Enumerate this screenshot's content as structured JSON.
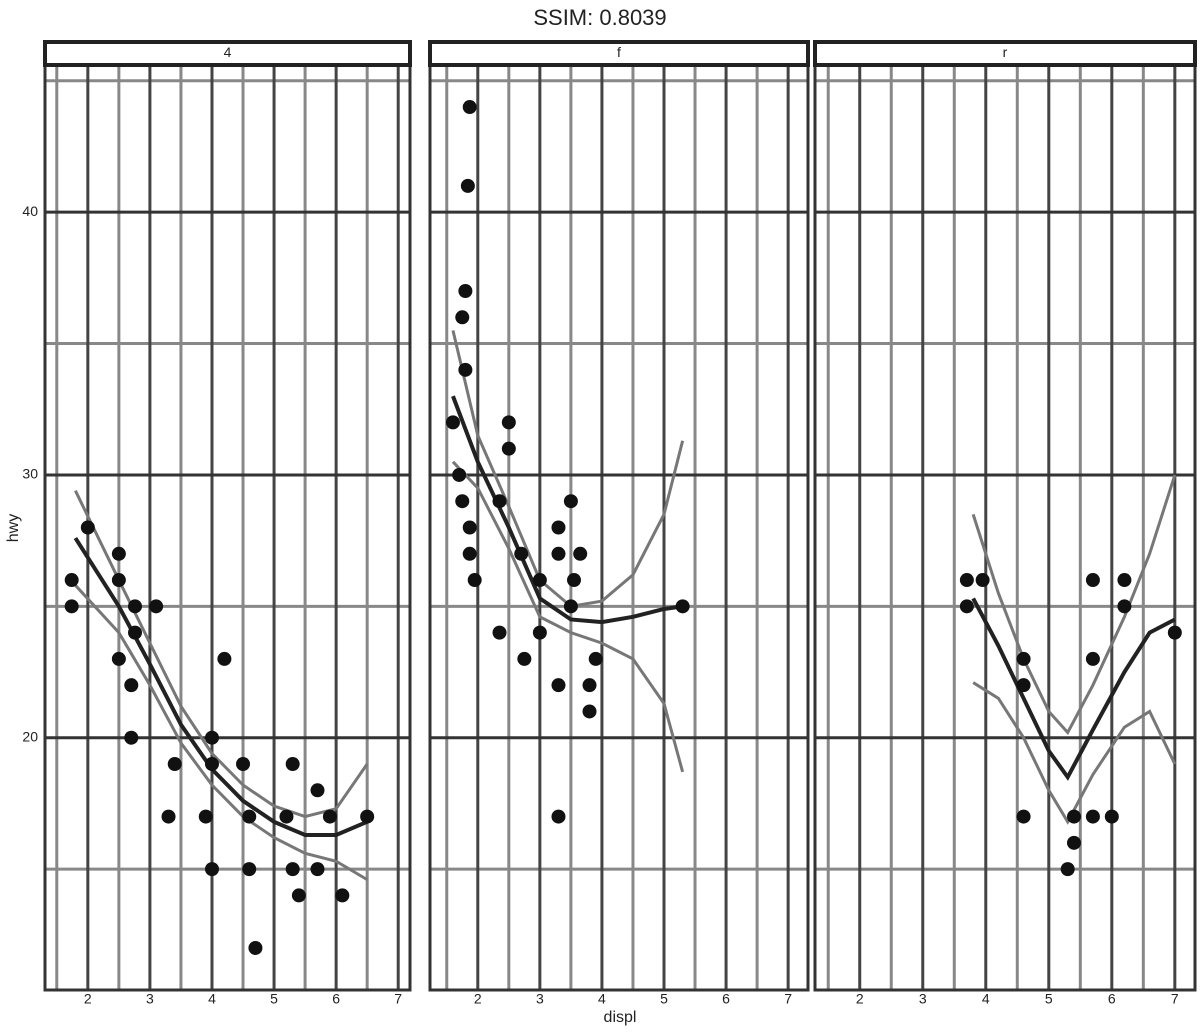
{
  "chart_data": {
    "type": "scatter",
    "title": "SSIM: 0.8039",
    "x_label": "displ",
    "y_label": "hwy",
    "ylim": [
      10.4,
      45.6
    ],
    "yticks": [
      20,
      30,
      40
    ],
    "yticks_minor": [
      15,
      25,
      35,
      45
    ],
    "point_color": "#111111",
    "smooth_color": "#222222",
    "band_color": "#777777",
    "grid": true,
    "panels": [
      {
        "label": "4",
        "xlim": [
          1.31,
          7.19
        ],
        "xticks": [
          2,
          3,
          4,
          5,
          6,
          7
        ],
        "xticks_minor": [
          1.5,
          2.5,
          3.5,
          4.5,
          5.5,
          6.5
        ],
        "x": [
          1.74,
          1.74,
          2.0,
          2.5,
          2.5,
          2.76,
          3.1,
          2.76,
          2.5,
          4.2,
          2.7,
          2.7,
          4.0,
          3.4,
          4.0,
          4.5,
          5.3,
          3.3,
          3.9,
          4.6,
          5.2,
          5.9,
          6.5,
          5.7,
          4.0,
          4.6,
          5.3,
          5.7,
          5.4,
          6.1,
          4.7
        ],
        "y": [
          26,
          25,
          28,
          27,
          26,
          25,
          25,
          24,
          23,
          23,
          22,
          20,
          20,
          19,
          19,
          19,
          19,
          17,
          17,
          17,
          17,
          17,
          17,
          18,
          15,
          15,
          15,
          15,
          14,
          14,
          12
        ],
        "smooth": {
          "x": [
            1.8,
            2.5,
            3,
            3.5,
            4,
            4.5,
            5,
            5.5,
            6,
            6.5
          ],
          "y": [
            27.6,
            25,
            22.8,
            20.5,
            18.8,
            17.6,
            16.8,
            16.3,
            16.3,
            16.8
          ],
          "upper": [
            29.4,
            26,
            23.6,
            21.2,
            19.4,
            18.2,
            17.4,
            17,
            17.3,
            19
          ],
          "lower": [
            25.8,
            24,
            22,
            19.8,
            18.2,
            17,
            16.2,
            15.6,
            15.3,
            14.6
          ]
        }
      },
      {
        "label": "f",
        "xlim": [
          1.23,
          7.32
        ],
        "xticks": [
          2,
          3,
          4,
          5,
          6,
          7
        ],
        "xticks_minor": [
          1.5,
          2.5,
          3.5,
          4.5,
          5.5,
          6.5
        ],
        "x": [
          1.87,
          1.84,
          1.8,
          1.75,
          1.6,
          1.8,
          1.7,
          1.75,
          1.87,
          1.87,
          1.95,
          2.5,
          2.5,
          2.35,
          2.7,
          3.0,
          3.3,
          3.5,
          3.3,
          3.65,
          3.55,
          3.5,
          2.35,
          3.0,
          2.75,
          3.9,
          3.3,
          3.8,
          3.8,
          3.3,
          5.3
        ],
        "y": [
          44,
          41,
          37,
          36,
          32,
          34,
          30,
          29,
          28,
          27,
          26,
          32,
          31,
          29,
          27,
          26,
          28,
          29,
          27,
          27,
          26,
          25,
          24,
          24,
          23,
          23,
          22,
          22,
          21,
          17,
          25
        ],
        "smooth": {
          "x": [
            1.6,
            2,
            2.5,
            3,
            3.5,
            4,
            4.5,
            5,
            5.3
          ],
          "y": [
            33,
            30.5,
            28,
            25.3,
            24.5,
            24.4,
            24.6,
            24.9,
            25
          ],
          "upper": [
            35.5,
            31.5,
            28.8,
            26,
            25,
            25.2,
            26.2,
            28.5,
            31.3
          ],
          "lower": [
            30.5,
            29.5,
            27.2,
            24.6,
            24,
            23.6,
            23,
            21.3,
            18.7
          ]
        }
      },
      {
        "label": "r",
        "xlim": [
          1.29,
          7.32
        ],
        "xticks": [
          2,
          3,
          4,
          5,
          6,
          7
        ],
        "xticks_minor": [
          1.5,
          2.5,
          3.5,
          4.5,
          5.5,
          6.5
        ],
        "x": [
          3.7,
          3.95,
          3.7,
          4.6,
          4.6,
          5.7,
          6.2,
          6.2,
          5.7,
          4.6,
          5.4,
          5.7,
          6.0,
          5.4,
          5.3,
          7.0
        ],
        "y": [
          26,
          26,
          25,
          23,
          22,
          26,
          26,
          25,
          23,
          17,
          17,
          17,
          17,
          16,
          15,
          24
        ],
        "smooth": {
          "x": [
            3.8,
            4.2,
            4.6,
            5,
            5.3,
            5.7,
            6.2,
            6.6,
            7
          ],
          "y": [
            25.3,
            23.5,
            21.5,
            19.5,
            18.5,
            20.3,
            22.5,
            24,
            24.5
          ],
          "upper": [
            28.5,
            25.5,
            23,
            21,
            20.2,
            22,
            24.6,
            27,
            30
          ],
          "lower": [
            22.1,
            21.5,
            20,
            18,
            16.8,
            18.6,
            20.4,
            21,
            19
          ]
        }
      }
    ]
  }
}
